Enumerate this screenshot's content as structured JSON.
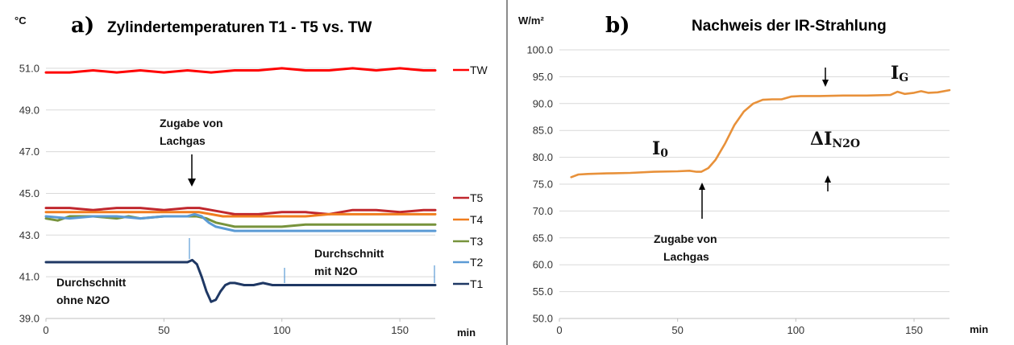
{
  "chart_data": [
    {
      "type": "line",
      "panel_label": "a)",
      "title": "Zylindertemperaturen T1 - T5 vs. TW",
      "y_unit": "°C",
      "x_unit": "min",
      "xlim": [
        0,
        165
      ],
      "ylim": [
        39.0,
        52.0
      ],
      "x_ticks": [
        "0",
        "50",
        "100",
        "150"
      ],
      "x_tick_values": [
        0,
        50,
        100,
        150
      ],
      "y_ticks": [
        "39.0",
        "41.0",
        "43.0",
        "45.0",
        "47.0",
        "49.0",
        "51.0"
      ],
      "y_tick_values": [
        39,
        41,
        43,
        45,
        47,
        49,
        51
      ],
      "grid": "horizontal",
      "legend": "right, inline labels",
      "series": [
        {
          "name": "TW",
          "color": "#ff0000",
          "x": [
            0,
            10,
            20,
            30,
            40,
            50,
            60,
            70,
            80,
            90,
            100,
            110,
            120,
            130,
            140,
            150,
            160,
            165
          ],
          "y": [
            50.8,
            50.8,
            50.9,
            50.8,
            50.9,
            50.8,
            50.9,
            50.8,
            50.9,
            50.9,
            51.0,
            50.9,
            50.9,
            51.0,
            50.9,
            51.0,
            50.9,
            50.9
          ]
        },
        {
          "name": "T5",
          "color": "#c0272d",
          "x": [
            0,
            10,
            20,
            30,
            40,
            50,
            60,
            65,
            70,
            75,
            80,
            90,
            100,
            110,
            120,
            130,
            140,
            150,
            160,
            165
          ],
          "y": [
            44.3,
            44.3,
            44.2,
            44.3,
            44.3,
            44.2,
            44.3,
            44.3,
            44.2,
            44.1,
            44.0,
            44.0,
            44.1,
            44.1,
            44.0,
            44.2,
            44.2,
            44.1,
            44.2,
            44.2
          ]
        },
        {
          "name": "T4",
          "color": "#f07d1e",
          "x": [
            0,
            10,
            20,
            30,
            40,
            50,
            60,
            65,
            70,
            75,
            80,
            90,
            100,
            110,
            120,
            130,
            140,
            150,
            160,
            165
          ],
          "y": [
            44.1,
            44.1,
            44.1,
            44.1,
            44.1,
            44.1,
            44.1,
            44.1,
            44.0,
            43.9,
            43.9,
            43.9,
            43.9,
            43.9,
            44.0,
            44.0,
            44.0,
            44.0,
            44.0,
            44.0
          ]
        },
        {
          "name": "T3",
          "color": "#77933c",
          "x": [
            0,
            5,
            10,
            20,
            30,
            35,
            40,
            50,
            60,
            64,
            68,
            72,
            76,
            80,
            90,
            100,
            110,
            120,
            130,
            140,
            150,
            160,
            165
          ],
          "y": [
            43.8,
            43.7,
            43.9,
            43.9,
            43.8,
            43.9,
            43.8,
            43.9,
            43.9,
            43.9,
            43.8,
            43.6,
            43.5,
            43.4,
            43.4,
            43.4,
            43.5,
            43.5,
            43.5,
            43.5,
            43.5,
            43.5,
            43.5
          ]
        },
        {
          "name": "T2",
          "color": "#5b9bd5",
          "x": [
            0,
            10,
            20,
            30,
            40,
            50,
            60,
            63,
            66,
            69,
            72,
            76,
            80,
            90,
            100,
            110,
            120,
            130,
            140,
            150,
            160,
            165
          ],
          "y": [
            43.9,
            43.8,
            43.9,
            43.9,
            43.8,
            43.9,
            43.9,
            44.0,
            43.9,
            43.6,
            43.4,
            43.3,
            43.2,
            43.2,
            43.2,
            43.2,
            43.2,
            43.2,
            43.2,
            43.2,
            43.2,
            43.2
          ]
        },
        {
          "name": "T1",
          "color": "#1f3864",
          "x": [
            0,
            10,
            20,
            30,
            40,
            50,
            55,
            60,
            62,
            64,
            66,
            68,
            70,
            72,
            74,
            76,
            78,
            80,
            84,
            88,
            92,
            96,
            100,
            110,
            120,
            130,
            140,
            150,
            160,
            165
          ],
          "y": [
            41.7,
            41.7,
            41.7,
            41.7,
            41.7,
            41.7,
            41.7,
            41.7,
            41.8,
            41.6,
            41.0,
            40.3,
            39.8,
            39.9,
            40.3,
            40.6,
            40.7,
            40.7,
            40.6,
            40.6,
            40.7,
            40.6,
            40.6,
            40.6,
            40.6,
            40.6,
            40.6,
            40.6,
            40.6,
            40.6
          ]
        }
      ],
      "annotations": {
        "gas_added": [
          "Zugabe von",
          "Lachgas"
        ],
        "avg_without": [
          "Durchschnitt",
          "ohne N2O"
        ],
        "avg_with": [
          "Durchschnitt",
          "mit N2O"
        ]
      }
    },
    {
      "type": "line",
      "panel_label": "b)",
      "title": "Nachweis der IR-Strahlung",
      "y_unit": "W/m²",
      "x_unit": "min",
      "xlim": [
        0,
        165
      ],
      "ylim": [
        50.0,
        100.0
      ],
      "x_ticks": [
        "0",
        "50",
        "100",
        "150"
      ],
      "x_tick_values": [
        0,
        50,
        100,
        150
      ],
      "y_ticks": [
        "50.0",
        "55.0",
        "60.0",
        "65.0",
        "70.0",
        "75.0",
        "80.0",
        "85.0",
        "90.0",
        "95.0",
        "100.0"
      ],
      "y_tick_values": [
        50,
        55,
        60,
        65,
        70,
        75,
        80,
        85,
        90,
        95,
        100
      ],
      "grid": "horizontal",
      "series": [
        {
          "name": "",
          "color": "#e8913a",
          "x": [
            5,
            8,
            12,
            20,
            30,
            40,
            50,
            55,
            58,
            60,
            63,
            66,
            70,
            74,
            78,
            82,
            86,
            90,
            94,
            98,
            102,
            110,
            120,
            130,
            140,
            143,
            146,
            150,
            153,
            156,
            160,
            165
          ],
          "y": [
            76.3,
            76.8,
            76.9,
            77.0,
            77.1,
            77.3,
            77.4,
            77.5,
            77.3,
            77.3,
            78.0,
            79.5,
            82.5,
            86.0,
            88.5,
            90.0,
            90.7,
            90.8,
            90.8,
            91.3,
            91.4,
            91.4,
            91.5,
            91.5,
            91.6,
            92.2,
            91.8,
            92.0,
            92.3,
            92.0,
            92.1,
            92.5
          ]
        }
      ],
      "annotations": {
        "i0_main": "I",
        "i0_sub": "0",
        "ig_main": "I",
        "ig_sub": "G",
        "delta_main": "ΔI",
        "delta_sub": "N2O",
        "gas_added": [
          "Zugabe von",
          "Lachgas"
        ]
      }
    }
  ]
}
